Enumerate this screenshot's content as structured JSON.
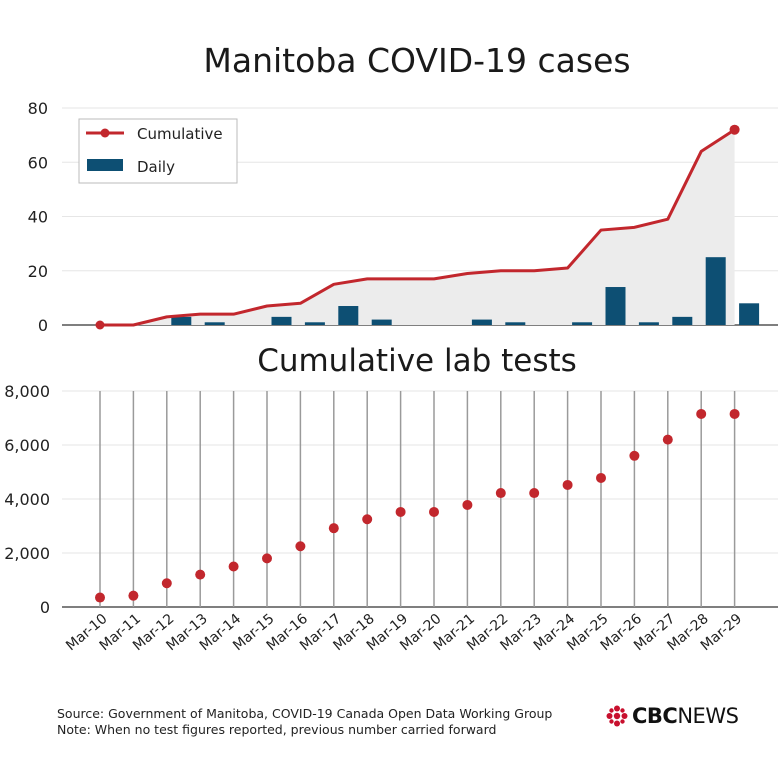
{
  "brand": {
    "logo_text": "CBCNEWS",
    "logo_bold": "CBC",
    "logo_light": "NEWS",
    "accent": "#c8102e"
  },
  "footer": {
    "source": "Source: Government of Manitoba, COVID-19 Canada Open Data Working Group",
    "note": "Note: When no test figures reported, previous number carried forward"
  },
  "colors": {
    "cumulative": "#c2272d",
    "daily": "#0d4f73",
    "area": "#ececec",
    "grid": "#e6e6e6",
    "stem": "#9a9a9a"
  },
  "chart_data": [
    {
      "type": "line",
      "title": "Manitoba COVID-19 cases",
      "legend_position": "top-left",
      "grid": true,
      "categories": [
        "Mar-10",
        "Mar-11",
        "Mar-12",
        "Mar-13",
        "Mar-14",
        "Mar-15",
        "Mar-16",
        "Mar-17",
        "Mar-18",
        "Mar-19",
        "Mar-20",
        "Mar-21",
        "Mar-22",
        "Mar-23",
        "Mar-24",
        "Mar-25",
        "Mar-26",
        "Mar-27",
        "Mar-28",
        "Mar-29"
      ],
      "ylim": [
        0,
        80
      ],
      "yticks": [
        "0",
        "20",
        "40",
        "60",
        "80"
      ],
      "series": [
        {
          "name": "Cumulative",
          "type": "line",
          "values": [
            0,
            0,
            3,
            4,
            4,
            7,
            8,
            15,
            17,
            17,
            17,
            19,
            20,
            20,
            21,
            35,
            36,
            39,
            64,
            72
          ]
        },
        {
          "name": "Daily",
          "type": "bar",
          "values": [
            0,
            0,
            3,
            1,
            0,
            3,
            1,
            7,
            2,
            0,
            0,
            2,
            1,
            0,
            1,
            14,
            1,
            3,
            25,
            8
          ]
        }
      ]
    },
    {
      "type": "scatter",
      "title": "Cumulative lab tests",
      "grid": true,
      "categories": [
        "Mar-10",
        "Mar-11",
        "Mar-12",
        "Mar-13",
        "Mar-14",
        "Mar-15",
        "Mar-16",
        "Mar-17",
        "Mar-18",
        "Mar-19",
        "Mar-20",
        "Mar-21",
        "Mar-22",
        "Mar-23",
        "Mar-24",
        "Mar-25",
        "Mar-26",
        "Mar-27",
        "Mar-28",
        "Mar-29"
      ],
      "ylim": [
        0,
        8000
      ],
      "yticks": [
        "0",
        "2,000",
        "4,000",
        "6,000",
        "8,000"
      ],
      "values": [
        350,
        420,
        880,
        1200,
        1500,
        1800,
        2250,
        2920,
        3250,
        3520,
        3520,
        3780,
        4220,
        4220,
        4520,
        4780,
        5600,
        6200,
        7150,
        7150
      ]
    }
  ]
}
